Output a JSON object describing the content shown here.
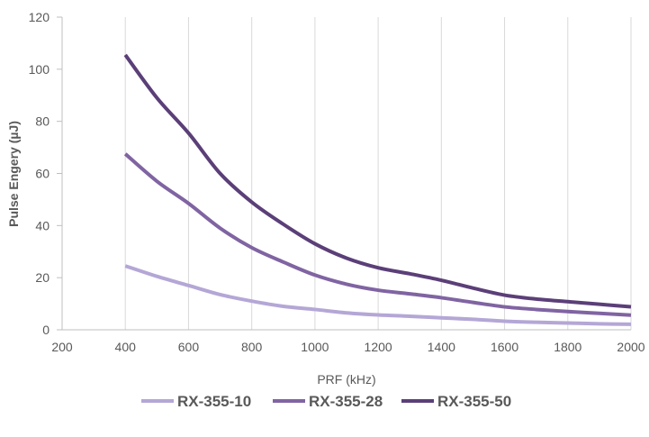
{
  "chart_data": {
    "type": "line",
    "title": "",
    "xlabel": "PRF (kHz)",
    "ylabel": "Pulse Engery (µJ)",
    "xlim": [
      200,
      2000
    ],
    "ylim": [
      0,
      120
    ],
    "xticks": [
      "200",
      "400",
      "600",
      "800",
      "1000",
      "1200",
      "1400",
      "1600",
      "1800",
      "2000"
    ],
    "yticks": [
      "0",
      "20",
      "40",
      "60",
      "80",
      "100",
      "120"
    ],
    "grid": "vertical",
    "legend": "bottom",
    "x": [
      400,
      500,
      600,
      700,
      800,
      900,
      1000,
      1100,
      1200,
      1300,
      1400,
      1500,
      1600,
      1700,
      1800,
      1900,
      2000
    ],
    "series": [
      {
        "name": "RX-355-10",
        "color": "#b4a7d6",
        "values": [
          24.5,
          20.5,
          17,
          13.5,
          11,
          9,
          7.8,
          6.5,
          5.7,
          5.2,
          4.6,
          4,
          3.3,
          2.9,
          2.6,
          2.3,
          2.1
        ]
      },
      {
        "name": "RX-355-28",
        "color": "#8064a2",
        "values": [
          67.5,
          57,
          48.5,
          39,
          31.5,
          26,
          21,
          17.5,
          15.2,
          13.8,
          12.3,
          10.5,
          8.8,
          7.8,
          7,
          6.3,
          5.6
        ]
      },
      {
        "name": "RX-355-50",
        "color": "#5b3f78",
        "values": [
          105.5,
          89,
          75.5,
          60,
          49,
          40.5,
          33,
          27.5,
          23.8,
          21.5,
          19,
          16,
          13.3,
          11.8,
          10.8,
          9.8,
          8.8
        ]
      }
    ]
  }
}
